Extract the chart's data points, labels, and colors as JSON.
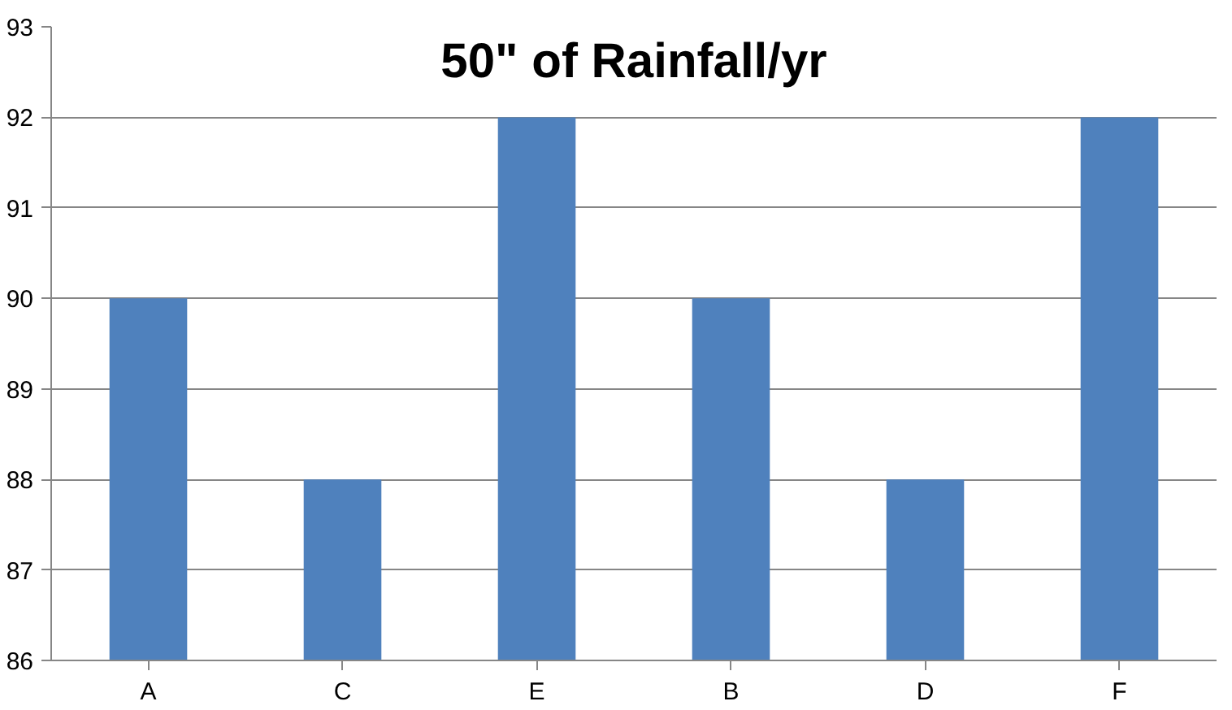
{
  "chart_data": {
    "type": "bar",
    "title": "50\" of Rainfall/yr",
    "categories": [
      "A",
      "C",
      "E",
      "B",
      "D",
      "F"
    ],
    "values": [
      90,
      88,
      92,
      90,
      88,
      92
    ],
    "color": "#4f81bd",
    "ylim": [
      86,
      93
    ],
    "yticks": [
      86,
      87,
      88,
      89,
      90,
      91,
      92,
      93
    ],
    "grid": "y"
  }
}
